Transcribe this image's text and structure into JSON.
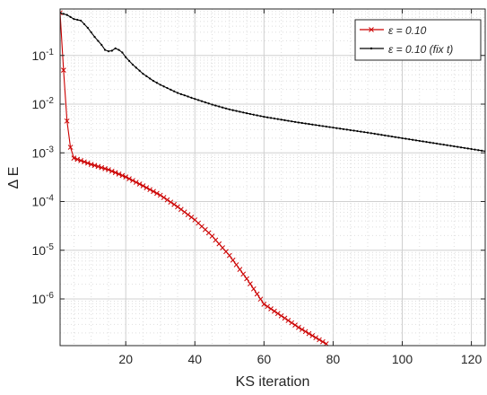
{
  "chart_data": {
    "type": "line",
    "xlabel": "KS iteration",
    "ylabel": "Δ E",
    "xlim": [
      1,
      124
    ],
    "ylim": [
      1.1e-07,
      0.9
    ],
    "yscale": "log",
    "grid": true,
    "minor_grid": true,
    "legend_position": "top-right",
    "x_ticks": [
      20,
      40,
      60,
      80,
      100,
      120
    ],
    "y_ticks": [
      {
        "value": 1e-06,
        "base": "10",
        "exp": "-6"
      },
      {
        "value": 1e-05,
        "base": "10",
        "exp": "-5"
      },
      {
        "value": 0.0001,
        "base": "10",
        "exp": "-4"
      },
      {
        "value": 0.001,
        "base": "10",
        "exp": "-3"
      },
      {
        "value": 0.01,
        "base": "10",
        "exp": "-2"
      },
      {
        "value": 0.1,
        "base": "10",
        "exp": "-1"
      }
    ],
    "series": [
      {
        "name": "ε = 0.10",
        "color": "#cc0000",
        "marker": "x",
        "points": [
          [
            1,
            0.75
          ],
          [
            2,
            0.05
          ],
          [
            3,
            0.0045
          ],
          [
            4,
            0.0013
          ],
          [
            5,
            0.00078
          ],
          [
            10,
            0.00058
          ],
          [
            15,
            0.00045
          ],
          [
            20,
            0.00032
          ],
          [
            25,
            0.00021
          ],
          [
            30,
            0.000135
          ],
          [
            35,
            7.8e-05
          ],
          [
            40,
            4.2e-05
          ],
          [
            45,
            1.95e-05
          ],
          [
            50,
            7.8e-06
          ],
          [
            55,
            2.6e-06
          ],
          [
            60,
            7.8e-07
          ],
          [
            65,
            4.5e-07
          ],
          [
            70,
            2.6e-07
          ],
          [
            75,
            1.6e-07
          ],
          [
            78,
            1.2e-07
          ]
        ]
      },
      {
        "name": "ε = 0.10 (fix t)",
        "color": "#000000",
        "marker": "dot",
        "points": [
          [
            1,
            0.75
          ],
          [
            3,
            0.68
          ],
          [
            5,
            0.56
          ],
          [
            7,
            0.52
          ],
          [
            9,
            0.37
          ],
          [
            11,
            0.24
          ],
          [
            13,
            0.165
          ],
          [
            14,
            0.13
          ],
          [
            15,
            0.122
          ],
          [
            16,
            0.125
          ],
          [
            17,
            0.14
          ],
          [
            18,
            0.13
          ],
          [
            19,
            0.115
          ],
          [
            20,
            0.092
          ],
          [
            22,
            0.065
          ],
          [
            25,
            0.042
          ],
          [
            28,
            0.03
          ],
          [
            30,
            0.025
          ],
          [
            35,
            0.017
          ],
          [
            40,
            0.0128
          ],
          [
            45,
            0.0098
          ],
          [
            50,
            0.0078
          ],
          [
            55,
            0.0065
          ],
          [
            60,
            0.0055
          ],
          [
            70,
            0.0042
          ],
          [
            80,
            0.0033
          ],
          [
            90,
            0.0026
          ],
          [
            100,
            0.002
          ],
          [
            110,
            0.00155
          ],
          [
            124,
            0.00108
          ]
        ]
      }
    ]
  }
}
